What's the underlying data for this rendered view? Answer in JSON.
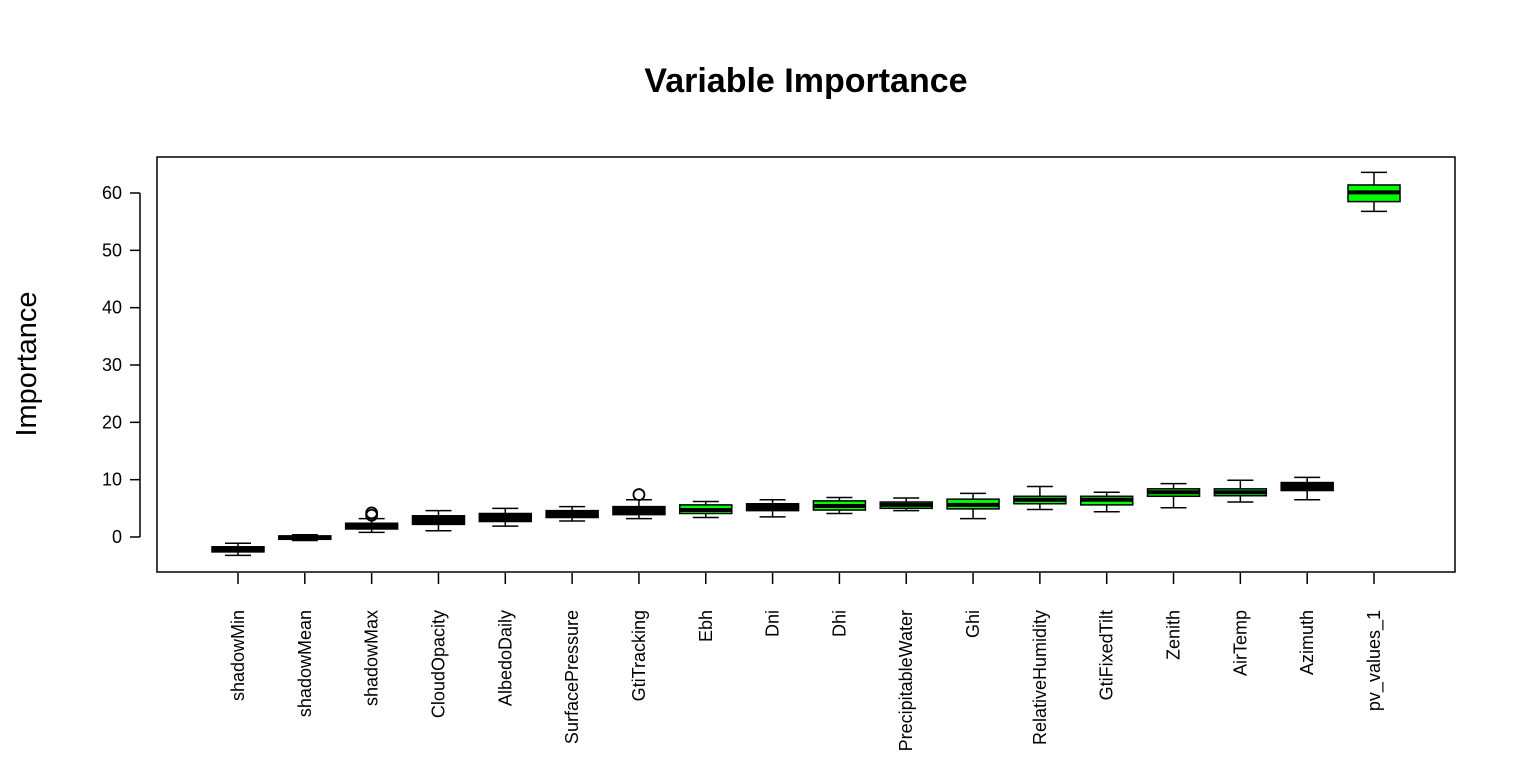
{
  "chart_data": {
    "type": "boxplot",
    "title": "Variable Importance",
    "xlabel": "",
    "ylabel": "Importance",
    "ylim": [
      -6,
      66
    ],
    "yticks": [
      0,
      10,
      20,
      30,
      40,
      50,
      60
    ],
    "grid": false,
    "legend": "none",
    "colors": {
      "rejected": "#000000",
      "confirmed": "#00ff00",
      "shadow": "#000000"
    },
    "boxes": [
      {
        "category": "shadowMin",
        "whisker_low": -3.2,
        "q1": -2.6,
        "median": -2.1,
        "q3": -1.7,
        "whisker_high": -1.1,
        "outliers": [],
        "status": "shadow"
      },
      {
        "category": "shadowMean",
        "whisker_low": -0.6,
        "q1": -0.4,
        "median": -0.1,
        "q3": 0.2,
        "whisker_high": 0.4,
        "outliers": [],
        "status": "shadow"
      },
      {
        "category": "shadowMax",
        "whisker_low": 0.8,
        "q1": 1.4,
        "median": 1.9,
        "q3": 2.4,
        "whisker_high": 3.2,
        "outliers": [
          3.8,
          4.2
        ],
        "status": "shadow"
      },
      {
        "category": "CloudOpacity",
        "whisker_low": 1.1,
        "q1": 2.2,
        "median": 2.9,
        "q3": 3.7,
        "whisker_high": 4.6,
        "outliers": [],
        "status": "rejected"
      },
      {
        "category": "AlbedoDaily",
        "whisker_low": 1.9,
        "q1": 2.7,
        "median": 3.4,
        "q3": 4.1,
        "whisker_high": 5.0,
        "outliers": [],
        "status": "rejected"
      },
      {
        "category": "SurfacePressure",
        "whisker_low": 2.8,
        "q1": 3.4,
        "median": 4.0,
        "q3": 4.6,
        "whisker_high": 5.3,
        "outliers": [],
        "status": "rejected"
      },
      {
        "category": "GtiTracking",
        "whisker_low": 3.2,
        "q1": 3.9,
        "median": 4.6,
        "q3": 5.3,
        "whisker_high": 6.5,
        "outliers": [
          7.4
        ],
        "status": "rejected"
      },
      {
        "category": "Ebh",
        "whisker_low": 3.4,
        "q1": 4.1,
        "median": 4.7,
        "q3": 5.6,
        "whisker_high": 6.2,
        "outliers": [],
        "status": "confirmed"
      },
      {
        "category": "Dni",
        "whisker_low": 3.5,
        "q1": 4.6,
        "median": 5.2,
        "q3": 5.8,
        "whisker_high": 6.5,
        "outliers": [],
        "status": "rejected"
      },
      {
        "category": "Dhi",
        "whisker_low": 4.1,
        "q1": 4.7,
        "median": 5.4,
        "q3": 6.3,
        "whisker_high": 6.9,
        "outliers": [],
        "status": "confirmed"
      },
      {
        "category": "PrecipitableWater",
        "whisker_low": 4.6,
        "q1": 5.0,
        "median": 5.6,
        "q3": 6.1,
        "whisker_high": 6.8,
        "outliers": [],
        "status": "confirmed"
      },
      {
        "category": "Ghi",
        "whisker_low": 3.2,
        "q1": 4.9,
        "median": 5.6,
        "q3": 6.6,
        "whisker_high": 7.6,
        "outliers": [],
        "status": "confirmed"
      },
      {
        "category": "RelativeHumidity",
        "whisker_low": 4.8,
        "q1": 5.8,
        "median": 6.5,
        "q3": 7.1,
        "whisker_high": 8.8,
        "outliers": [],
        "status": "confirmed"
      },
      {
        "category": "GtiFixedTilt",
        "whisker_low": 4.4,
        "q1": 5.6,
        "median": 6.5,
        "q3": 7.1,
        "whisker_high": 7.8,
        "outliers": [],
        "status": "confirmed"
      },
      {
        "category": "Zenith",
        "whisker_low": 5.1,
        "q1": 7.1,
        "median": 7.8,
        "q3": 8.4,
        "whisker_high": 9.3,
        "outliers": [],
        "status": "confirmed"
      },
      {
        "category": "AirTemp",
        "whisker_low": 6.1,
        "q1": 7.2,
        "median": 7.8,
        "q3": 8.4,
        "whisker_high": 9.9,
        "outliers": [],
        "status": "confirmed"
      },
      {
        "category": "Azimuth",
        "whisker_low": 6.5,
        "q1": 8.1,
        "median": 8.7,
        "q3": 9.5,
        "whisker_high": 10.4,
        "outliers": [],
        "status": "rejected"
      },
      {
        "category": "pv_values_1",
        "whisker_low": 56.8,
        "q1": 58.5,
        "median": 60.1,
        "q3": 61.4,
        "whisker_high": 63.6,
        "outliers": [],
        "status": "confirmed"
      }
    ]
  }
}
